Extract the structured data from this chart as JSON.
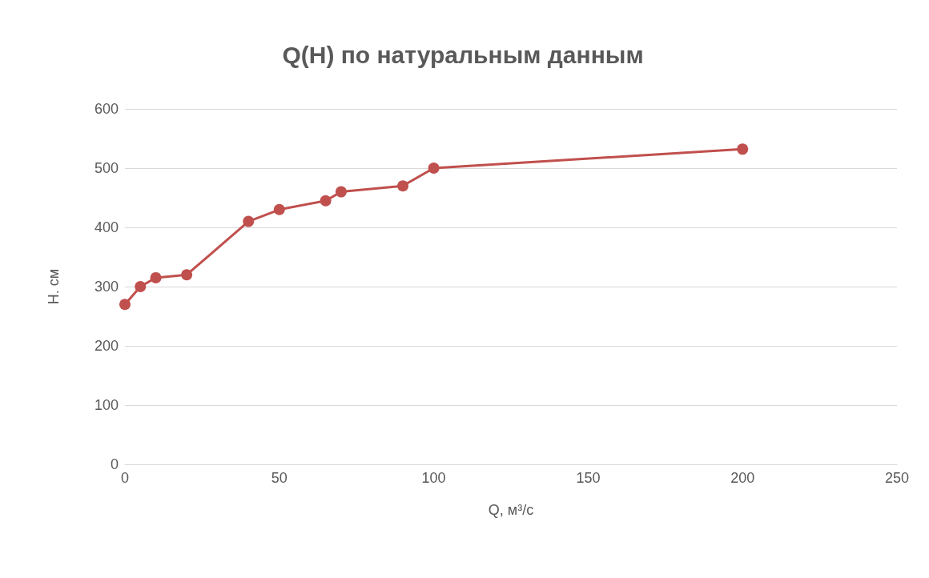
{
  "chart_data": {
    "type": "line",
    "title": "Q(H) по натуральным данным",
    "xlabel": "Q, м³/с",
    "ylabel": "Н. см",
    "x": [
      0,
      5,
      10,
      20,
      40,
      50,
      65,
      70,
      90,
      100,
      200
    ],
    "series": [
      {
        "color": "#c0504d",
        "values": [
          270,
          300,
          315,
          320,
          410,
          430,
          445,
          460,
          470,
          500,
          532
        ]
      }
    ],
    "xlim": [
      0,
      250
    ],
    "xticks": [
      0,
      50,
      100,
      150,
      200,
      250
    ],
    "ylim": [
      0,
      600
    ],
    "yticks": [
      0,
      100,
      200,
      300,
      400,
      500,
      600
    ],
    "grid": "y",
    "marker": "circle",
    "line_style": "solid"
  }
}
